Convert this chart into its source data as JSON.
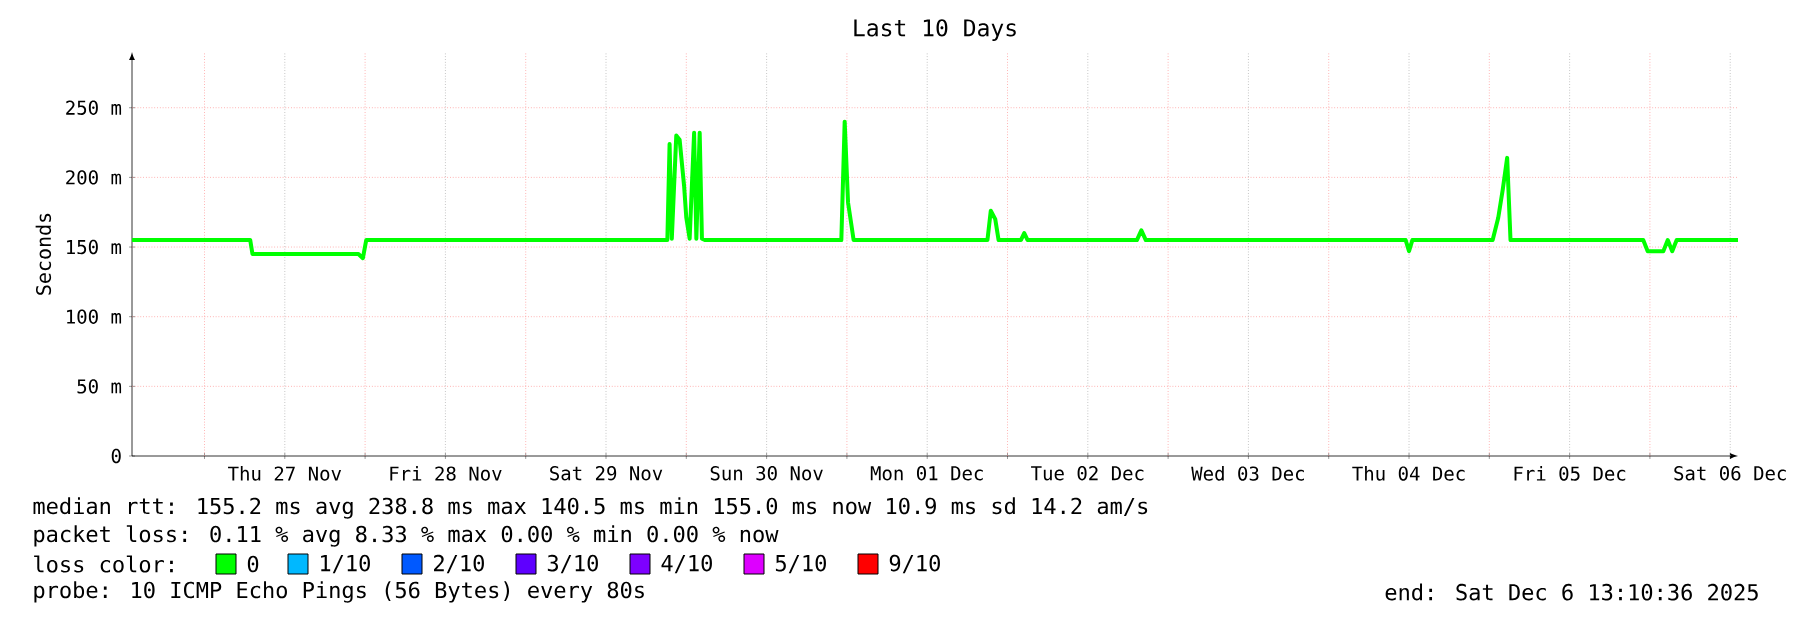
{
  "chart_data": {
    "type": "line",
    "title": "Last 10 Days",
    "ylabel": "Seconds",
    "legend_title": "loss color:",
    "legend": "bottom",
    "grid": true,
    "marker": "none",
    "line_style": "solid",
    "xlim": [
      "2025-11-26T13:10",
      "2025-12-06T13:10"
    ],
    "xticks": [
      {
        "value": "2025-11-27T00:00",
        "label": null
      },
      {
        "value": "2025-11-27T12:00",
        "label": "Thu 27 Nov"
      },
      {
        "value": "2025-11-28T00:00",
        "label": null
      },
      {
        "value": "2025-11-28T12:00",
        "label": "Fri 28 Nov"
      },
      {
        "value": "2025-11-29T00:00",
        "label": null
      },
      {
        "value": "2025-11-29T12:00",
        "label": "Sat 29 Nov"
      },
      {
        "value": "2025-11-30T00:00",
        "label": null
      },
      {
        "value": "2025-11-30T12:00",
        "label": "Sun 30 Nov"
      },
      {
        "value": "2025-12-01T00:00",
        "label": null
      },
      {
        "value": "2025-12-01T12:00",
        "label": "Mon 01 Dec"
      },
      {
        "value": "2025-12-02T00:00",
        "label": null
      },
      {
        "value": "2025-12-02T12:00",
        "label": "Tue 02 Dec"
      },
      {
        "value": "2025-12-03T00:00",
        "label": null
      },
      {
        "value": "2025-12-03T12:00",
        "label": "Wed 03 Dec"
      },
      {
        "value": "2025-12-04T00:00",
        "label": null
      },
      {
        "value": "2025-12-04T12:00",
        "label": "Thu 04 Dec"
      },
      {
        "value": "2025-12-05T00:00",
        "label": null
      },
      {
        "value": "2025-12-05T12:00",
        "label": "Fri 05 Dec"
      },
      {
        "value": "2025-12-06T00:00",
        "label": null
      },
      {
        "value": "2025-12-06T12:00",
        "label": "Sat 06 Dec"
      }
    ],
    "ylim": [
      0,
      290
    ],
    "yticks": [
      0,
      {
        "value": 50,
        "label": "50 m"
      },
      {
        "value": 100,
        "label": "100 m"
      },
      {
        "value": 150,
        "label": "150 m"
      },
      {
        "value": 200,
        "label": "200 m"
      },
      {
        "value": 250,
        "label": "250 m"
      }
    ],
    "x": [
      "2025-11-26T13:10",
      "2025-11-27T06:50",
      "2025-11-27T07:10",
      "2025-11-27T23:00",
      "2025-11-27T23:40",
      "2025-11-28T00:10",
      "2025-11-29T21:10",
      "2025-11-29T21:30",
      "2025-11-29T21:50",
      "2025-11-29T22:30",
      "2025-11-29T23:00",
      "2025-11-29T23:40",
      "2025-11-30T00:00",
      "2025-11-30T00:30",
      "2025-11-30T01:10",
      "2025-11-30T01:30",
      "2025-11-30T02:00",
      "2025-11-30T02:20",
      "2025-11-30T02:50",
      "2025-11-30T23:10",
      "2025-11-30T23:40",
      "2025-12-01T00:10",
      "2025-12-01T00:40",
      "2025-12-01T01:00",
      "2025-12-01T21:00",
      "2025-12-01T21:30",
      "2025-12-01T22:10",
      "2025-12-01T22:40",
      "2025-12-02T02:00",
      "2025-12-02T02:30",
      "2025-12-02T03:00",
      "2025-12-02T19:20",
      "2025-12-02T20:00",
      "2025-12-02T20:40",
      "2025-12-04T11:30",
      "2025-12-04T12:00",
      "2025-12-04T12:30",
      "2025-12-05T00:30",
      "2025-12-05T01:20",
      "2025-12-05T02:00",
      "2025-12-05T02:40",
      "2025-12-05T03:10",
      "2025-12-05T03:40",
      "2025-12-05T23:00",
      "2025-12-05T23:40",
      "2025-12-06T02:00",
      "2025-12-06T02:40",
      "2025-12-06T03:20",
      "2025-12-06T04:00",
      "2025-12-06T04:40",
      "2025-12-06T13:10"
    ],
    "series": [
      {
        "name": "0",
        "color": "#00ff00",
        "values": [
          155,
          155,
          145,
          145,
          142,
          155,
          155,
          224,
          156,
          230,
          227,
          194,
          171,
          156,
          232,
          156,
          232,
          156,
          155,
          155,
          240,
          182,
          166,
          155,
          155,
          176,
          170,
          155,
          155,
          160,
          155,
          155,
          162,
          155,
          155,
          147,
          155,
          155,
          171,
          191,
          214,
          155,
          155,
          155,
          147,
          147,
          155,
          147,
          155,
          155,
          155
        ]
      },
      {
        "name": "1/10",
        "color": "#00b8ff",
        "values": [
          null,
          null,
          null,
          null,
          null,
          null,
          null,
          null,
          null,
          null,
          null,
          null,
          null,
          null,
          null,
          null,
          null,
          null,
          null,
          null,
          null,
          null,
          null,
          null,
          null,
          null,
          null,
          null,
          null,
          null,
          null,
          null,
          null,
          null,
          null,
          null,
          null,
          null,
          null,
          null,
          null,
          null,
          null,
          null,
          null,
          null,
          null,
          null,
          null,
          null,
          null
        ]
      },
      {
        "name": "2/10",
        "color": "#0059ff",
        "values": [
          null,
          null,
          null,
          null,
          null,
          null,
          null,
          null,
          null,
          null,
          null,
          null,
          null,
          null,
          null,
          null,
          null,
          null,
          null,
          null,
          null,
          null,
          null,
          null,
          null,
          null,
          null,
          null,
          null,
          null,
          null,
          null,
          null,
          null,
          null,
          null,
          null,
          null,
          null,
          null,
          null,
          null,
          null,
          null,
          null,
          null,
          null,
          null,
          null,
          null,
          null
        ]
      },
      {
        "name": "3/10",
        "color": "#5e00ff",
        "values": [
          null,
          null,
          null,
          null,
          null,
          null,
          null,
          null,
          null,
          null,
          null,
          null,
          null,
          null,
          null,
          null,
          null,
          null,
          null,
          null,
          null,
          null,
          null,
          null,
          null,
          null,
          null,
          null,
          null,
          null,
          null,
          null,
          null,
          null,
          null,
          null,
          null,
          null,
          null,
          null,
          null,
          null,
          null,
          null,
          null,
          null,
          null,
          null,
          null,
          null,
          null
        ]
      },
      {
        "name": "4/10",
        "color": "#7e00ff",
        "values": [
          null,
          null,
          null,
          null,
          null,
          null,
          null,
          null,
          null,
          null,
          null,
          null,
          null,
          null,
          null,
          null,
          null,
          null,
          null,
          null,
          null,
          null,
          null,
          null,
          null,
          null,
          null,
          null,
          null,
          null,
          null,
          null,
          null,
          null,
          null,
          null,
          null,
          null,
          null,
          null,
          null,
          null,
          null,
          null,
          null,
          null,
          null,
          null,
          null,
          null,
          null
        ]
      },
      {
        "name": "5/10",
        "color": "#dd00ff",
        "values": [
          null,
          null,
          null,
          null,
          null,
          null,
          null,
          null,
          null,
          null,
          null,
          null,
          null,
          null,
          null,
          null,
          null,
          null,
          null,
          null,
          null,
          null,
          null,
          null,
          null,
          null,
          null,
          null,
          null,
          null,
          null,
          null,
          null,
          null,
          null,
          null,
          null,
          null,
          null,
          null,
          null,
          null,
          null,
          null,
          null,
          null,
          null,
          null,
          null,
          null,
          null
        ]
      },
      {
        "name": "9/10",
        "color": "#ff0000",
        "values": [
          null,
          null,
          null,
          null,
          null,
          null,
          null,
          null,
          null,
          null,
          null,
          null,
          null,
          null,
          null,
          null,
          null,
          null,
          null,
          null,
          null,
          null,
          null,
          null,
          null,
          null,
          null,
          null,
          null,
          null,
          null,
          null,
          null,
          null,
          null,
          null,
          null,
          null,
          null,
          null,
          null,
          null,
          null,
          null,
          null,
          null,
          null,
          null,
          null,
          null,
          null
        ]
      }
    ],
    "annotations": [
      "median rtt:  155.2 ms avg  238.8 ms max  140.5 ms min  155.0 ms now  10.9 ms sd  14.2   am/s",
      "packet loss: 0.11 % avg  8.33 % max  0.00 % min  0.00 % now",
      "probe:       10 ICMP Echo Pings (56 Bytes) every 80s",
      "end: Sat Dec  6 13:10:36 2025"
    ]
  }
}
